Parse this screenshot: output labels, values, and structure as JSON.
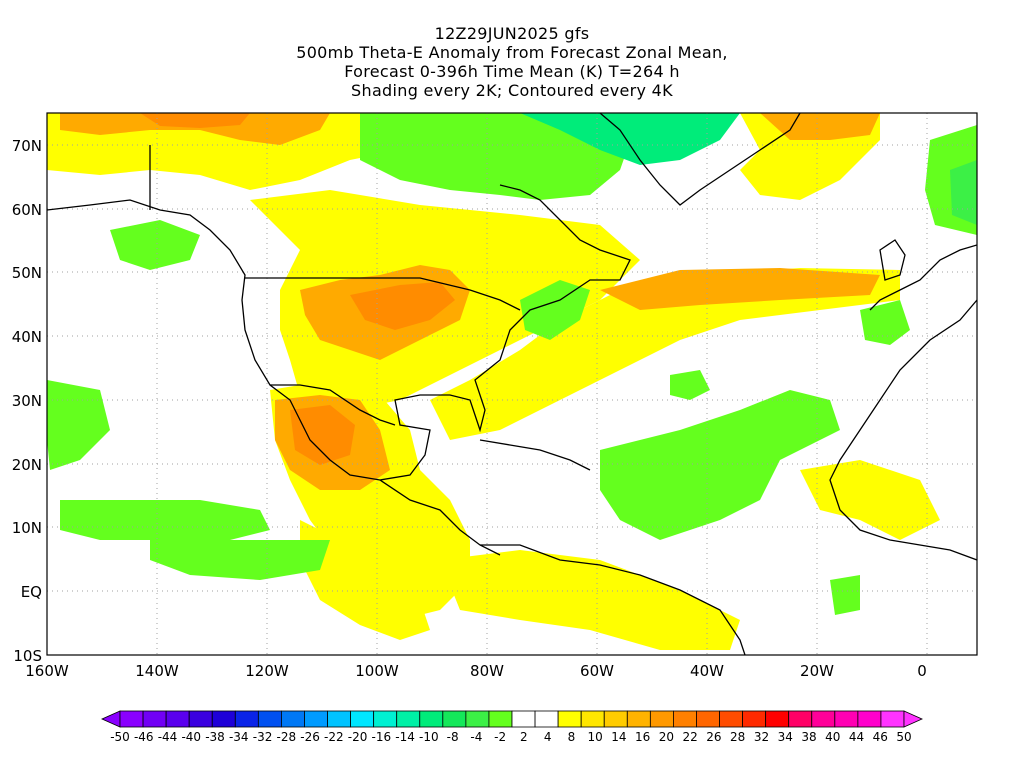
{
  "title": {
    "line1": "12Z29JUN2025 gfs",
    "line2": "500mb Theta-E Anomaly from Forecast Zonal Mean,",
    "line3": "Forecast 0-396h Time Mean (K) T=264 h",
    "line4": "Shading every 2K; Contoured every 4K"
  },
  "axes": {
    "lat_labels": [
      "70N",
      "60N",
      "50N",
      "40N",
      "30N",
      "20N",
      "10N",
      "EQ",
      "10S"
    ],
    "lon_labels": [
      "160W",
      "140W",
      "120W",
      "100W",
      "80W",
      "60W",
      "40W",
      "20W",
      "0"
    ]
  },
  "colorbar": {
    "labels": [
      "-50",
      "-46",
      "-44",
      "-40",
      "-38",
      "-34",
      "-32",
      "-28",
      "-26",
      "-22",
      "-20",
      "-16",
      "-14",
      "-10",
      "-8",
      "-4",
      "-2",
      "2",
      "4",
      "8",
      "10",
      "14",
      "16",
      "20",
      "22",
      "26",
      "28",
      "32",
      "34",
      "38",
      "40",
      "44",
      "46",
      "50"
    ],
    "colors": [
      "#8a00ff",
      "#7100f5",
      "#5a00ee",
      "#3a00e0",
      "#1e00d8",
      "#0a24e8",
      "#0050f0",
      "#0078f5",
      "#009bff",
      "#00c3ff",
      "#00e6ff",
      "#00f0d2",
      "#00f0a6",
      "#00ec7a",
      "#14e85a",
      "#3cf046",
      "#64ff1e",
      "#ffffff",
      "#ffffff",
      "#ffff00",
      "#ffe600",
      "#ffcc00",
      "#ffb300",
      "#ff9900",
      "#ff8000",
      "#ff6600",
      "#ff4c00",
      "#ff2a00",
      "#ff0000",
      "#ff0066",
      "#ff0099",
      "#ff00b3",
      "#ff00cc",
      "#ff33ff"
    ]
  },
  "fill_colors": {
    "yellow": "#ffff00",
    "light_orange": "#ffd200",
    "orange": "#ffaa00",
    "dark_orange": "#ff8c00",
    "light_green": "#64ff1e",
    "green": "#3cf046",
    "mint": "#00ec7a",
    "coast": "#000000"
  }
}
